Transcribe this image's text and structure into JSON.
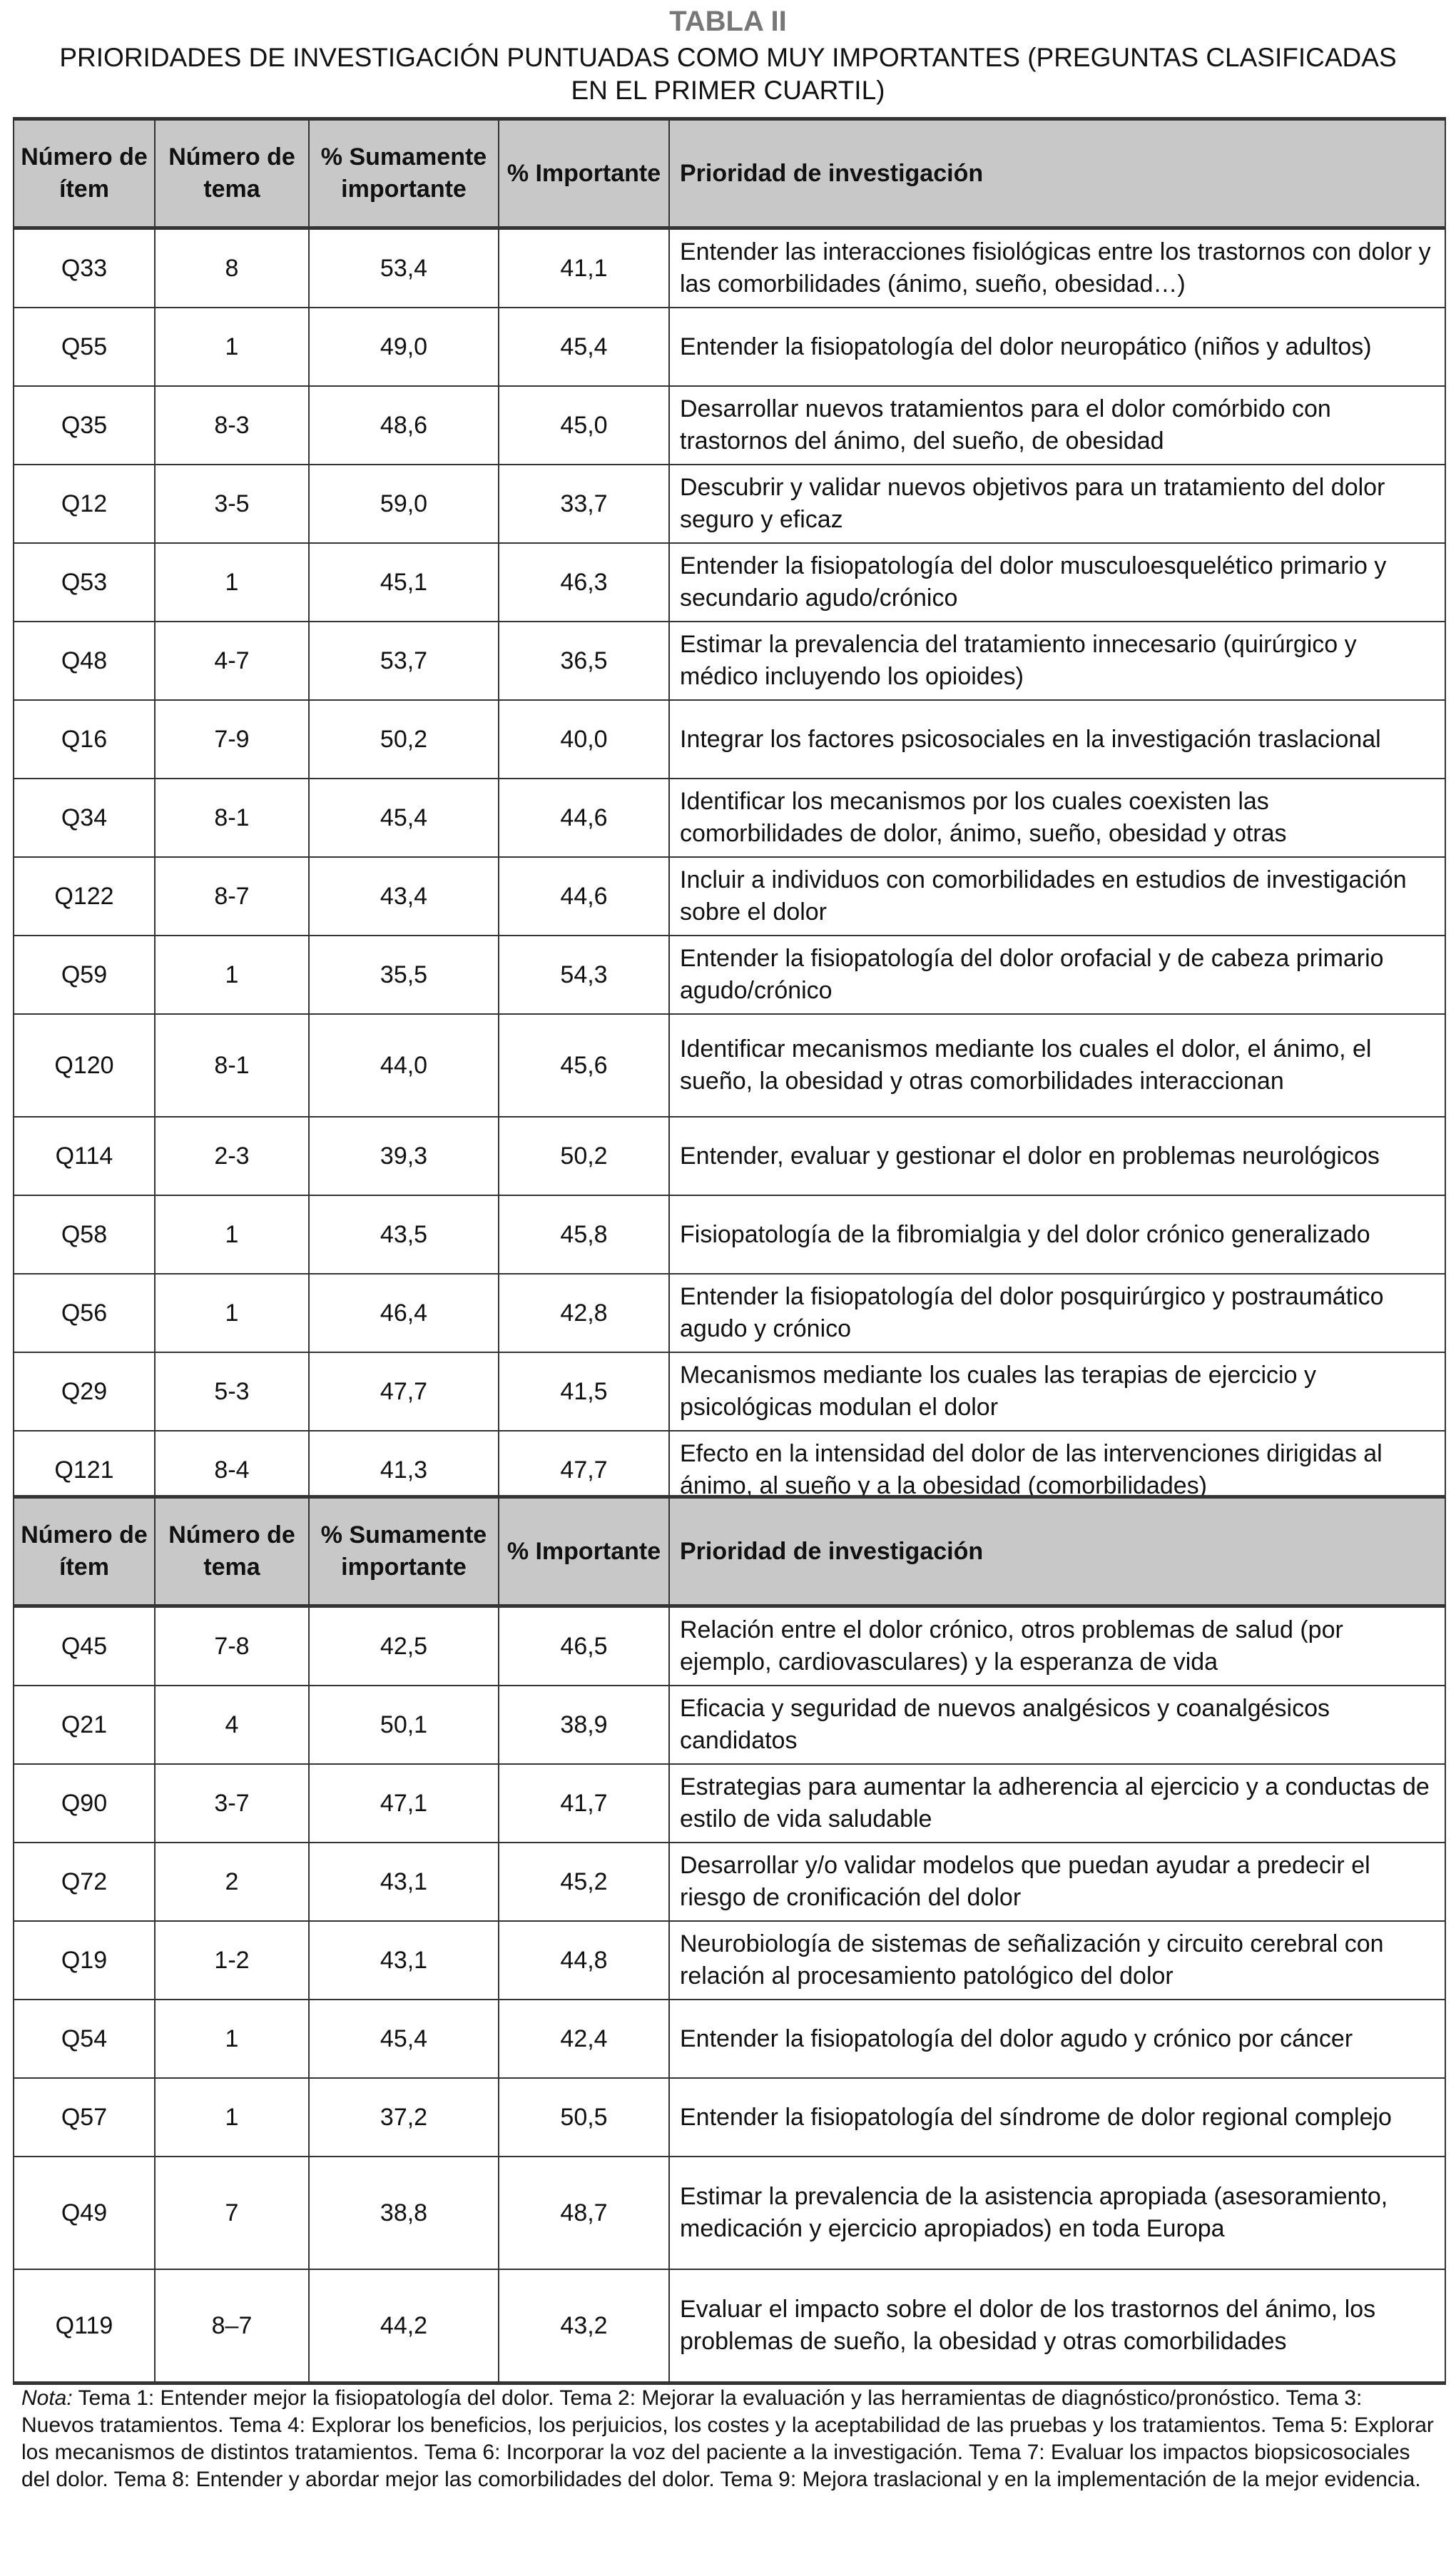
{
  "title": "TABLA II",
  "subtitle": "PRIORIDADES DE INVESTIGACIÓN PUNTUADAS COMO MUY IMPORTANTES (PREGUNTAS CLASIFICADAS EN EL PRIMER CUARTIL)",
  "headers": [
    "Número de ítem",
    "Número de tema",
    "% Sumamente importante",
    "% Importante",
    "Prioridad de investigación"
  ],
  "table1": [
    [
      "Q33",
      "8",
      "53,4",
      "41,1",
      "Entender las interacciones fisiológicas entre los trastornos con dolor y las comorbilidades (ánimo, sueño, obesidad…)"
    ],
    [
      "Q55",
      "1",
      "49,0",
      "45,4",
      "Entender la fisiopatología del dolor neuropático (niños y adultos)"
    ],
    [
      "Q35",
      "8-3",
      "48,6",
      "45,0",
      "Desarrollar nuevos tratamientos para el dolor comórbido con trastornos del ánimo, del sueño, de obesidad"
    ],
    [
      "Q12",
      "3-5",
      "59,0",
      "33,7",
      "Descubrir y validar nuevos objetivos para un tratamiento del dolor seguro y eficaz"
    ],
    [
      "Q53",
      "1",
      "45,1",
      "46,3",
      "Entender la fisiopatología del dolor musculoesquelético primario y secundario agudo/crónico"
    ],
    [
      "Q48",
      "4-7",
      "53,7",
      "36,5",
      "Estimar la prevalencia del tratamiento innecesario (quirúrgico y médico incluyendo los opioides)"
    ],
    [
      "Q16",
      "7-9",
      "50,2",
      "40,0",
      "Integrar los factores psicosociales en la investigación traslacional"
    ],
    [
      "Q34",
      "8-1",
      "45,4",
      "44,6",
      "Identificar los mecanismos por los cuales coexisten las comorbilidades de dolor, ánimo, sueño, obesidad y otras"
    ],
    [
      "Q122",
      "8-7",
      "43,4",
      "44,6",
      "Incluir a individuos con comorbilidades en estudios de investigación sobre el dolor"
    ],
    [
      "Q59",
      "1",
      "35,5",
      "54,3",
      "Entender la fisiopatología del dolor orofacial y de cabeza primario agudo/crónico"
    ],
    [
      "Q120",
      "8-1",
      "44,0",
      "45,6",
      "Identificar mecanismos mediante los cuales el dolor, el ánimo, el sueño, la obesidad y otras comorbilidades interaccionan"
    ],
    [
      "Q114",
      "2-3",
      "39,3",
      "50,2",
      "Entender, evaluar y gestionar el dolor en problemas neurológicos"
    ],
    [
      "Q58",
      "1",
      "43,5",
      "45,8",
      "Fisiopatología de la fibromialgia y del dolor crónico generalizado"
    ],
    [
      "Q56",
      "1",
      "46,4",
      "42,8",
      "Entender la fisiopatología del dolor posquirúrgico y postraumático agudo y crónico"
    ],
    [
      "Q29",
      "5-3",
      "47,7",
      "41,5",
      "Mecanismos mediante los cuales las terapias de ejercicio y psicológicas modulan el dolor"
    ],
    [
      "Q121",
      "8-4",
      "41,3",
      "47,7",
      "Efecto en la intensidad del dolor de las intervenciones dirigidas al ánimo, al sueño y a la obesidad (comorbilidades)"
    ]
  ],
  "table2": [
    [
      "Q45",
      "7-8",
      "42,5",
      "46,5",
      "Relación entre el dolor crónico, otros problemas de salud (por ejemplo, cardiovasculares) y la esperanza de vida"
    ],
    [
      "Q21",
      "4",
      "50,1",
      "38,9",
      "Eficacia y seguridad de nuevos analgésicos y coanalgésicos candidatos"
    ],
    [
      "Q90",
      "3-7",
      "47,1",
      "41,7",
      "Estrategias para aumentar la adherencia al ejercicio y a conductas de estilo de vida saludable"
    ],
    [
      "Q72",
      "2",
      "43,1",
      "45,2",
      "Desarrollar y/o validar modelos que puedan ayudar a predecir el riesgo de cronificación del dolor"
    ],
    [
      "Q19",
      "1-2",
      "43,1",
      "44,8",
      "Neurobiología de sistemas de señalización y circuito cerebral con relación al procesamiento patológico del dolor"
    ],
    [
      "Q54",
      "1",
      "45,4",
      "42,4",
      "Entender la fisiopatología del dolor agudo y crónico por cáncer"
    ],
    [
      "Q57",
      "1",
      "37,2",
      "50,5",
      "Entender la fisiopatología del síndrome de dolor regional complejo"
    ],
    [
      "Q49",
      "7",
      "38,8",
      "48,7",
      "Estimar la prevalencia de la asistencia apropiada (asesoramiento, medicación y ejercicio apropiados) en toda Europa"
    ],
    [
      "Q119",
      "8–7",
      "44,2",
      "43,2",
      "Evaluar el impacto sobre el dolor de los trastornos del ánimo, los problemas de sueño, la obesidad y otras comorbilidades"
    ]
  ],
  "note": {
    "label": "Nota:",
    "text": " Tema 1: Entender mejor la fisiopatología del dolor. Tema 2: Mejorar la evaluación y las herramientas de diagnóstico/pronóstico. Tema 3: Nuevos tratamientos. Tema 4: Explorar los beneficios, los perjuicios, los costes y la aceptabilidad de las pruebas y los tratamientos. Tema 5: Explorar los mecanismos de distintos tratamientos. Tema 6: Incorporar la voz del paciente a la investigación. Tema 7: Evaluar los impactos biopsicosociales del dolor. Tema 8: Entender y abordar mejor las comorbilidades del dolor. Tema 9: Mejora traslacional y en la implementación de la mejor evidencia."
  }
}
